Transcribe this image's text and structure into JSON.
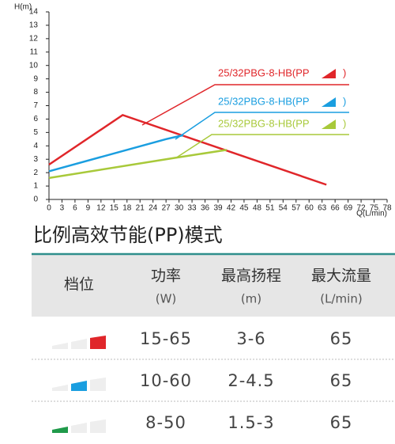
{
  "chart_data": {
    "type": "line",
    "x_label": "Q(L/min)",
    "y_label": "H(m)",
    "xlim": [
      0,
      78
    ],
    "xticks": [
      0,
      3,
      6,
      9,
      12,
      15,
      18,
      21,
      24,
      27,
      30,
      33,
      36,
      39,
      42,
      45,
      48,
      51,
      54,
      57,
      60,
      63,
      66,
      69,
      72,
      75,
      78
    ],
    "ylim": [
      0,
      14
    ],
    "yticks": [
      0,
      1,
      2,
      3,
      4,
      5,
      6,
      7,
      8,
      9,
      10,
      11,
      12,
      13,
      14
    ],
    "legend_suffix": ")",
    "series": [
      {
        "name": "25/32PBG-8-HB(PP",
        "color": "#e0262a",
        "x": [
          0,
          17,
          64
        ],
        "values": [
          2.6,
          6.3,
          1.1
        ]
      },
      {
        "name": "25/32PBG-8-HB(PP",
        "color": "#1a9ee0",
        "x": [
          0,
          27,
          31
        ],
        "values": [
          2.1,
          4.5,
          4.8
        ]
      },
      {
        "name": "25/32PBG-8-HB(PP",
        "color": "#a8c93a",
        "x": [
          0,
          29,
          41
        ],
        "values": [
          1.6,
          3.1,
          3.7
        ]
      }
    ]
  },
  "table": {
    "title": "比例高效节能(PP)模式",
    "header": [
      {
        "label": "档位"
      },
      {
        "label": "功率",
        "unit": "(W)"
      },
      {
        "label": "最高扬程",
        "unit": "(m)"
      },
      {
        "label": "最大流量",
        "unit": "(L/min)"
      }
    ],
    "rows": [
      [
        "15-65",
        "3-6",
        "65"
      ],
      [
        "10-60",
        "2-4.5",
        "65"
      ],
      [
        "8-50",
        "1.5-3",
        "65"
      ]
    ]
  }
}
